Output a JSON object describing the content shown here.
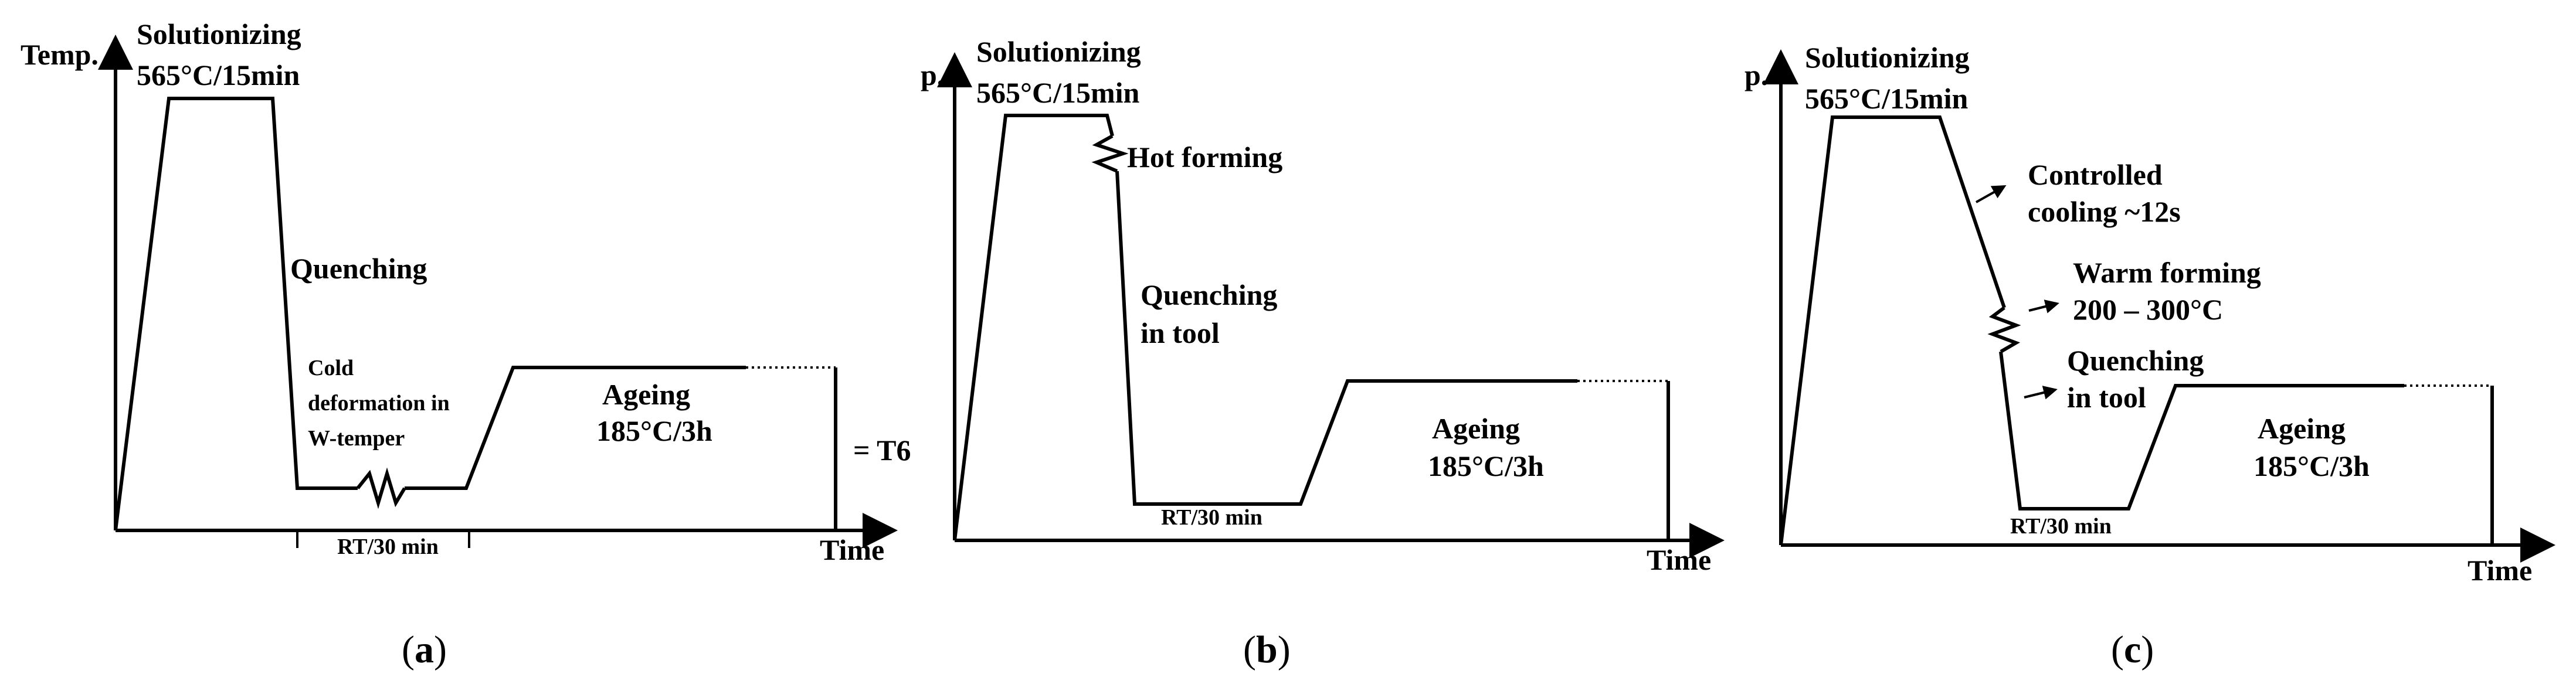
{
  "panels": [
    {
      "id": "a",
      "caption": "(a)",
      "caption_letter": "a",
      "y_axis_label": "Temp.",
      "x_axis_label": "Time",
      "step1": "Solutionizing",
      "step1_params": "565°C/15min",
      "quench_label": "Quenching",
      "cold_def_1": "Cold",
      "cold_def_2": "deformation in",
      "cold_def_3": "W-temper",
      "rt_label": "RT/30 min",
      "ageing": "Ageing",
      "ageing_params": "185°C/3h",
      "result": "= T6"
    },
    {
      "id": "b",
      "caption": "(b)",
      "caption_letter": "b",
      "y_axis_label": "p.",
      "x_axis_label": "Time",
      "step1": "Solutionizing",
      "step1_params": "565°C/15min",
      "hot_forming": "Hot forming",
      "quench_1": "Quenching",
      "quench_2": "in tool",
      "rt_label": "RT/30 min",
      "ageing": "Ageing",
      "ageing_params": "185°C/3h"
    },
    {
      "id": "c",
      "caption": "(c)",
      "caption_letter": "c",
      "y_axis_label": "p.",
      "x_axis_label": "Time",
      "step1": "Solutionizing",
      "step1_params": "565°C/15min",
      "controlled_1": "Controlled",
      "controlled_2": "cooling ~12s",
      "warm_1": "Warm forming",
      "warm_2": "200 – 300°C",
      "quench_1": "Quenching",
      "quench_2": "in tool",
      "rt_label": "RT/30 min",
      "ageing": "Ageing",
      "ageing_params": "185°C/3h"
    }
  ]
}
